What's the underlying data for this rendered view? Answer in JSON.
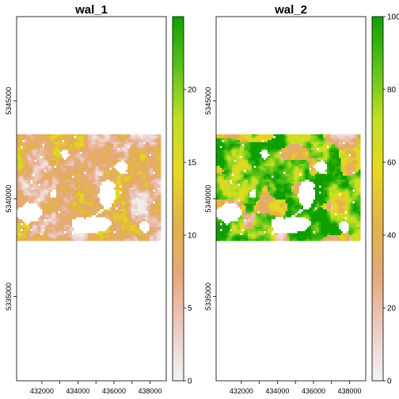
{
  "chart_data": [
    {
      "type": "heatmap",
      "title": "wal_1",
      "xlabel": "",
      "ylabel": "",
      "x_ticks": [
        432000,
        434000,
        436000,
        438000
      ],
      "x_tick_labels": [
        "432000",
        "434000",
        "436000",
        "438000"
      ],
      "y_ticks": [
        5335000,
        5340000,
        5345000
      ],
      "y_tick_labels": [
        "5335000",
        "5340000",
        "5345000"
      ],
      "xlim": [
        430600,
        438900
      ],
      "ylim": [
        5330700,
        5349300
      ],
      "raster_extent": {
        "x": [
          430600,
          438600
        ],
        "y": [
          5337900,
          5343300
        ]
      },
      "colorbar": {
        "range": [
          0,
          25
        ],
        "ticks": [
          0,
          5,
          10,
          15,
          20
        ],
        "tick_labels": [
          "0",
          "5",
          "10",
          "15",
          "20"
        ],
        "colors": [
          "#f2f2f2",
          "#eccbc3",
          "#e6a87a",
          "#e2b24a",
          "#e8d820",
          "#bfe023",
          "#5ac318",
          "#0e9e00"
        ]
      },
      "grid": false,
      "legend": "right"
    },
    {
      "type": "heatmap",
      "title": "wal_2",
      "xlabel": "",
      "ylabel": "",
      "x_ticks": [
        432000,
        434000,
        436000,
        438000
      ],
      "x_tick_labels": [
        "432000",
        "434000",
        "436000",
        "438000"
      ],
      "y_ticks": [
        5335000,
        5340000,
        5345000
      ],
      "y_tick_labels": [
        "5335000",
        "5340000",
        "5345000"
      ],
      "xlim": [
        430600,
        438900
      ],
      "ylim": [
        5330700,
        5349300
      ],
      "raster_extent": {
        "x": [
          430600,
          438600
        ],
        "y": [
          5337900,
          5343300
        ]
      },
      "colorbar": {
        "range": [
          0,
          100
        ],
        "ticks": [
          0,
          20,
          40,
          60,
          80,
          100
        ],
        "tick_labels": [
          "0",
          "20",
          "40",
          "60",
          "80",
          "100"
        ],
        "colors": [
          "#f2f2f2",
          "#eccbc3",
          "#e6a87a",
          "#e2b24a",
          "#e8d820",
          "#bfe023",
          "#5ac318",
          "#0e9e00"
        ]
      },
      "grid": false,
      "legend": "right"
    }
  ]
}
